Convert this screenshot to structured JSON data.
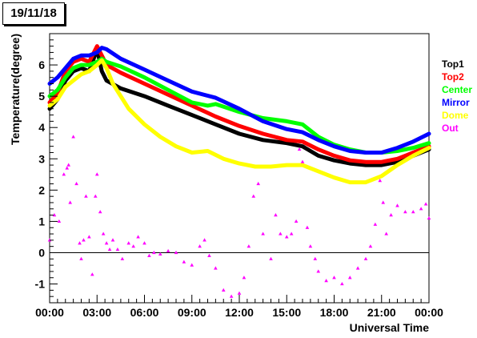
{
  "chart_data": {
    "type": "scatter",
    "title": "19/11/18",
    "xlabel": "Universal Time",
    "ylabel": "Temperature(degree)",
    "xlim": [
      0,
      24
    ],
    "ylim": [
      -1.6,
      7.0
    ],
    "x_ticks": [
      "00:00",
      "03:00",
      "06:00",
      "09:00",
      "12:00",
      "15:00",
      "18:00",
      "21:00",
      "00:00"
    ],
    "y_ticks": [
      "-1",
      "0",
      "1",
      "2",
      "3",
      "4",
      "5",
      "6"
    ],
    "zero_line": true,
    "grid": false,
    "legend_position": "right",
    "series": [
      {
        "name": "Top1",
        "color": "#000000",
        "x": [
          0,
          0.5,
          1,
          1.5,
          2,
          2.5,
          3,
          3.3,
          3.6,
          4.5,
          6,
          7.5,
          9,
          10.5,
          12,
          13.5,
          15,
          16,
          17,
          18,
          19,
          20,
          21,
          22,
          23,
          24
        ],
        "y": [
          4.6,
          4.9,
          5.5,
          5.8,
          5.9,
          5.8,
          6.5,
          5.8,
          5.5,
          5.25,
          5.0,
          4.7,
          4.4,
          4.1,
          3.8,
          3.6,
          3.5,
          3.4,
          3.1,
          2.95,
          2.85,
          2.8,
          2.8,
          2.9,
          3.1,
          3.3
        ]
      },
      {
        "name": "Top2",
        "color": "#ff0000",
        "x": [
          0,
          0.5,
          1,
          1.5,
          2,
          2.5,
          3,
          3.3,
          3.6,
          4.5,
          6,
          7.5,
          9,
          10.5,
          12,
          13.5,
          15,
          16,
          17,
          18,
          19,
          20,
          21,
          22,
          23,
          24
        ],
        "y": [
          4.8,
          5.1,
          5.8,
          6.1,
          6.2,
          6.1,
          6.6,
          6.3,
          6.0,
          5.75,
          5.4,
          5.05,
          4.7,
          4.35,
          4.05,
          3.8,
          3.6,
          3.55,
          3.3,
          3.1,
          2.95,
          2.9,
          2.9,
          3.0,
          3.2,
          3.4
        ]
      },
      {
        "name": "Center",
        "color": "#00ff00",
        "x": [
          0,
          0.5,
          1,
          1.5,
          2,
          2.5,
          3,
          3.3,
          3.6,
          4.5,
          6,
          7.5,
          9,
          10,
          10.5,
          12,
          13.5,
          15,
          16,
          17,
          18,
          19,
          20,
          21,
          22,
          23,
          24
        ],
        "y": [
          5.0,
          5.2,
          5.6,
          5.9,
          6.0,
          6.0,
          6.1,
          6.2,
          6.1,
          5.95,
          5.6,
          5.2,
          4.8,
          4.7,
          4.75,
          4.5,
          4.3,
          4.2,
          4.1,
          3.7,
          3.45,
          3.3,
          3.2,
          3.2,
          3.25,
          3.35,
          3.5
        ]
      },
      {
        "name": "Mirror",
        "color": "#0000ff",
        "x": [
          0,
          0.5,
          1,
          1.5,
          2,
          2.5,
          3,
          3.3,
          3.6,
          4.5,
          6,
          7.5,
          9,
          10.5,
          12,
          13.5,
          15,
          16,
          17,
          18,
          19,
          20,
          21,
          22,
          23,
          24
        ],
        "y": [
          5.4,
          5.6,
          5.9,
          6.2,
          6.3,
          6.3,
          6.4,
          6.55,
          6.5,
          6.2,
          5.85,
          5.5,
          5.15,
          4.95,
          4.6,
          4.2,
          3.95,
          3.85,
          3.6,
          3.4,
          3.25,
          3.2,
          3.2,
          3.35,
          3.55,
          3.8
        ]
      },
      {
        "name": "Dome",
        "color": "#ffff00",
        "x": [
          0,
          0.5,
          1,
          1.5,
          2,
          2.5,
          3,
          3.3,
          3.6,
          4,
          4.5,
          5,
          6,
          7,
          8,
          9,
          10,
          11,
          12,
          13,
          14,
          15,
          16,
          17,
          18,
          19,
          20,
          21,
          22,
          23,
          24
        ],
        "y": [
          4.7,
          4.9,
          5.3,
          5.5,
          5.7,
          5.8,
          6.0,
          6.15,
          5.9,
          5.4,
          5.0,
          4.6,
          4.1,
          3.7,
          3.4,
          3.2,
          3.25,
          3.0,
          2.85,
          2.75,
          2.75,
          2.8,
          2.8,
          2.6,
          2.4,
          2.25,
          2.25,
          2.45,
          2.8,
          3.1,
          3.35
        ]
      },
      {
        "name": "Out",
        "color": "#ff00ff",
        "x": [
          0,
          0.3,
          0.6,
          0.9,
          1.1,
          1.2,
          1.3,
          1.5,
          1.7,
          1.9,
          2.0,
          2.15,
          2.3,
          2.5,
          2.7,
          2.9,
          3.0,
          3.2,
          3.4,
          3.6,
          3.8,
          4.0,
          4.3,
          4.6,
          5.0,
          5.3,
          5.6,
          6.0,
          6.3,
          6.6,
          7.0,
          7.5,
          8.0,
          8.5,
          9.0,
          9.5,
          9.8,
          10.1,
          10.5,
          11.0,
          11.5,
          12.0,
          12.3,
          12.6,
          12.9,
          13.2,
          13.5,
          14.0,
          14.3,
          14.6,
          15.0,
          15.3,
          15.6,
          15.8,
          16.0,
          16.3,
          16.5,
          16.8,
          17.0,
          17.5,
          18.0,
          18.5,
          19.0,
          19.5,
          20.0,
          20.3,
          20.6,
          20.9,
          21.1,
          21.3,
          21.6,
          22.0,
          22.5,
          23.0,
          23.5,
          23.8,
          24.0
        ],
        "y": [
          0.4,
          1.2,
          1.0,
          2.5,
          2.7,
          2.8,
          1.6,
          3.7,
          2.2,
          0.3,
          -0.2,
          0.4,
          1.8,
          0.5,
          -0.7,
          1.8,
          2.5,
          1.3,
          0.6,
          0.3,
          0.1,
          0.4,
          0.1,
          -0.2,
          0.3,
          0.2,
          0.5,
          0.3,
          -0.1,
          0.0,
          -0.05,
          0.05,
          0.0,
          -0.3,
          -0.4,
          0.2,
          0.4,
          -0.1,
          -0.5,
          -1.2,
          -1.4,
          -1.3,
          -0.8,
          0.2,
          1.8,
          2.2,
          0.6,
          -0.2,
          1.2,
          0.6,
          0.5,
          0.6,
          1.0,
          3.3,
          2.9,
          0.8,
          0.2,
          -0.2,
          -0.6,
          -0.9,
          -0.8,
          -1.0,
          -0.8,
          -0.5,
          -0.2,
          0.2,
          0.9,
          2.3,
          1.6,
          0.6,
          1.2,
          1.5,
          1.3,
          1.3,
          1.4,
          1.55,
          1.1
        ]
      }
    ]
  }
}
